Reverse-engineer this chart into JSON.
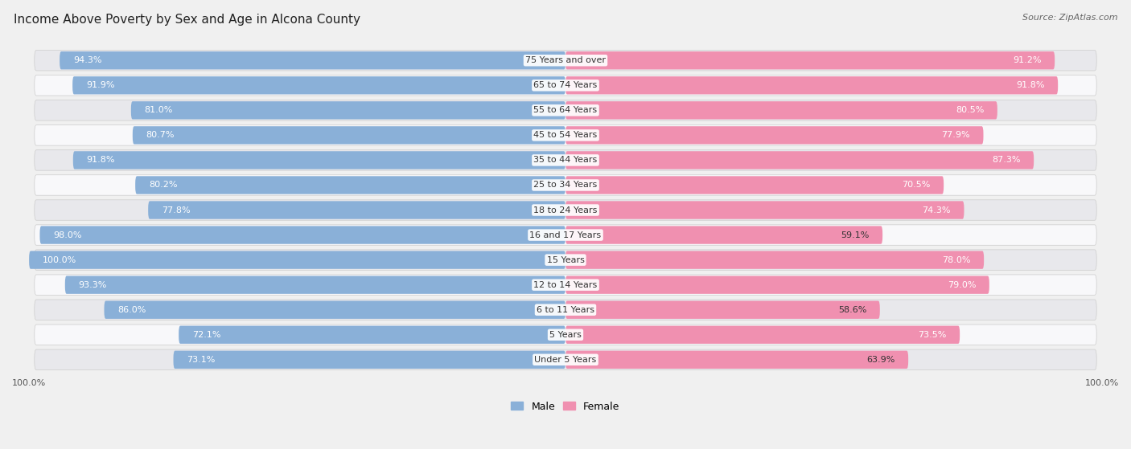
{
  "title": "Income Above Poverty by Sex and Age in Alcona County",
  "source": "Source: ZipAtlas.com",
  "categories": [
    "Under 5 Years",
    "5 Years",
    "6 to 11 Years",
    "12 to 14 Years",
    "15 Years",
    "16 and 17 Years",
    "18 to 24 Years",
    "25 to 34 Years",
    "35 to 44 Years",
    "45 to 54 Years",
    "55 to 64 Years",
    "65 to 74 Years",
    "75 Years and over"
  ],
  "male_values": [
    73.1,
    72.1,
    86.0,
    93.3,
    100.0,
    98.0,
    77.8,
    80.2,
    91.8,
    80.7,
    81.0,
    91.9,
    94.3
  ],
  "female_values": [
    63.9,
    73.5,
    58.6,
    79.0,
    78.0,
    59.1,
    74.3,
    70.5,
    87.3,
    77.9,
    80.5,
    91.8,
    91.2
  ],
  "male_color": "#8ab0d8",
  "female_color": "#f090b0",
  "male_color_light": "#b8d0e8",
  "female_color_light": "#f8b8cc",
  "male_label": "Male",
  "female_label": "Female",
  "max_value": 100.0,
  "bg_color": "#f0f0f0",
  "row_bg_color": "#e0e0e4",
  "row_alt_bg_color": "#f5f5f8",
  "title_fontsize": 11,
  "label_fontsize": 8,
  "tick_fontsize": 8,
  "source_fontsize": 8
}
